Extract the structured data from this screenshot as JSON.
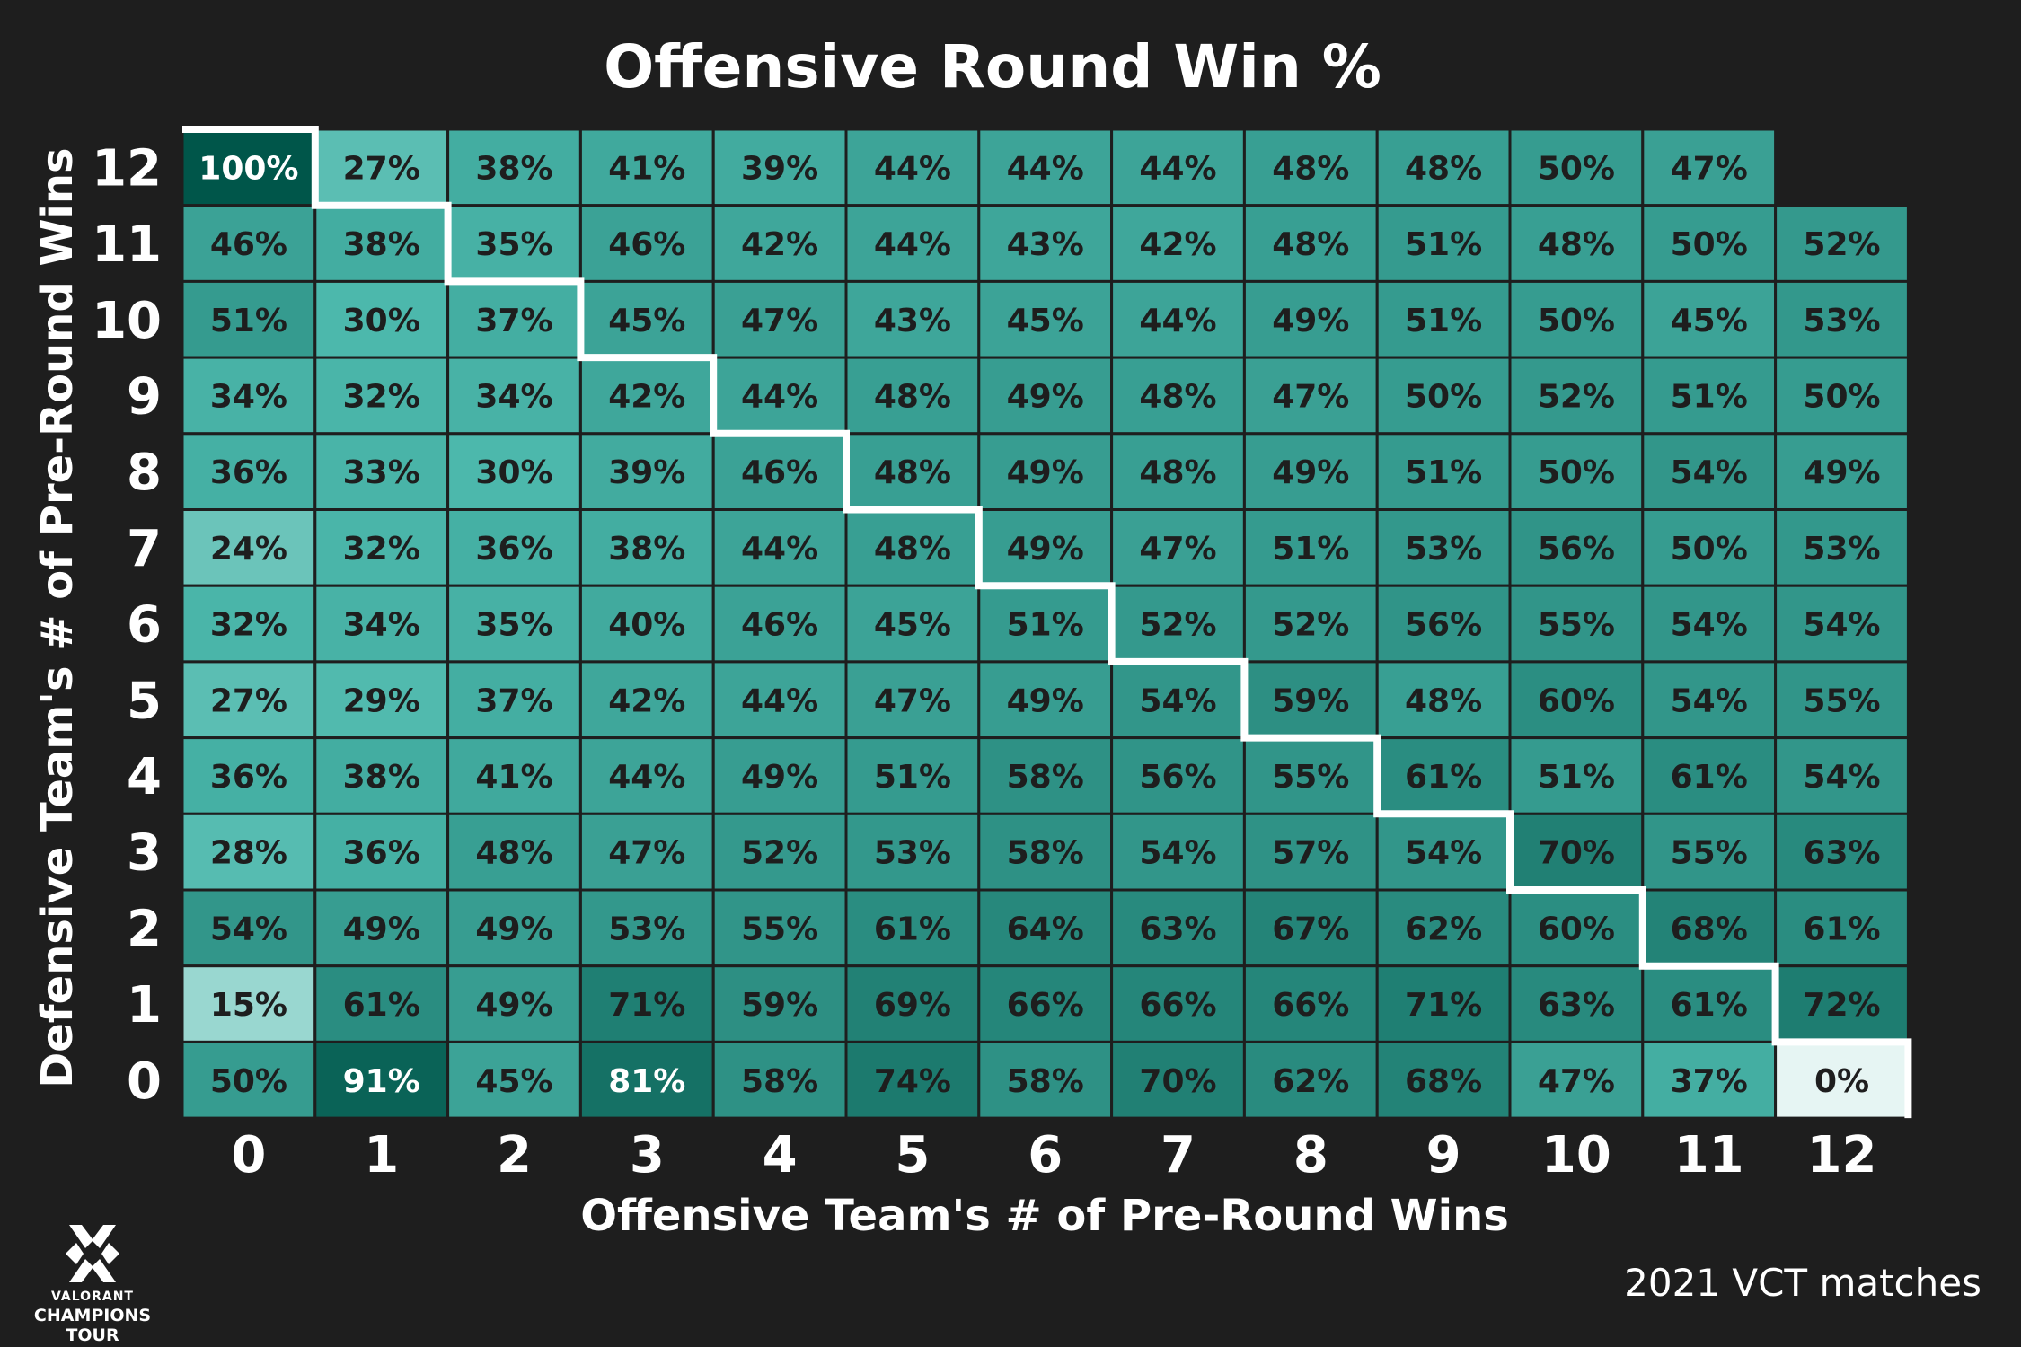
{
  "chart_data": {
    "type": "heatmap",
    "title": "Offensive Round Win %",
    "xlabel": "Offensive Team's # of Pre-Round Wins",
    "ylabel": "Defensive Team's # of Pre-Round Wins",
    "x_categories": [
      "0",
      "1",
      "2",
      "3",
      "4",
      "5",
      "6",
      "7",
      "8",
      "9",
      "10",
      "11",
      "12"
    ],
    "y_categories": [
      "0",
      "1",
      "2",
      "3",
      "4",
      "5",
      "6",
      "7",
      "8",
      "9",
      "10",
      "11",
      "12"
    ],
    "value_unit": "%",
    "rows": [
      {
        "y": "12",
        "values": [
          100,
          27,
          38,
          41,
          39,
          44,
          44,
          44,
          48,
          48,
          50,
          47,
          null
        ]
      },
      {
        "y": "11",
        "values": [
          46,
          38,
          35,
          46,
          42,
          44,
          43,
          42,
          48,
          51,
          48,
          50,
          52
        ]
      },
      {
        "y": "10",
        "values": [
          51,
          30,
          37,
          45,
          47,
          43,
          45,
          44,
          49,
          51,
          50,
          45,
          53
        ]
      },
      {
        "y": "9",
        "values": [
          34,
          32,
          34,
          42,
          44,
          48,
          49,
          48,
          47,
          50,
          52,
          51,
          50
        ]
      },
      {
        "y": "8",
        "values": [
          36,
          33,
          30,
          39,
          46,
          48,
          49,
          48,
          49,
          51,
          50,
          54,
          49
        ]
      },
      {
        "y": "7",
        "values": [
          24,
          32,
          36,
          38,
          44,
          48,
          49,
          47,
          51,
          53,
          56,
          50,
          53
        ]
      },
      {
        "y": "6",
        "values": [
          32,
          34,
          35,
          40,
          46,
          45,
          51,
          52,
          52,
          56,
          55,
          54,
          54
        ]
      },
      {
        "y": "5",
        "values": [
          27,
          29,
          37,
          42,
          44,
          47,
          49,
          54,
          59,
          48,
          60,
          54,
          55
        ]
      },
      {
        "y": "4",
        "values": [
          36,
          38,
          41,
          44,
          49,
          51,
          58,
          56,
          55,
          61,
          51,
          61,
          54
        ]
      },
      {
        "y": "3",
        "values": [
          28,
          36,
          48,
          47,
          52,
          53,
          58,
          54,
          57,
          54,
          70,
          55,
          63
        ]
      },
      {
        "y": "2",
        "values": [
          54,
          49,
          49,
          53,
          55,
          61,
          64,
          63,
          67,
          62,
          60,
          68,
          61
        ]
      },
      {
        "y": "1",
        "values": [
          15,
          61,
          49,
          71,
          59,
          69,
          66,
          66,
          66,
          71,
          63,
          61,
          72
        ]
      },
      {
        "y": "0",
        "values": [
          50,
          91,
          45,
          81,
          58,
          74,
          58,
          70,
          62,
          68,
          47,
          37,
          0
        ]
      }
    ],
    "diagonal_staircase": true,
    "grid": true,
    "legend": "none"
  },
  "source_note": "2021 VCT matches",
  "logo": {
    "line1": "VALORANT",
    "line2": "CHAMPIONS TOUR"
  },
  "colors": {
    "background": "#1e1e1e",
    "grid_lines": "#1e1e1e",
    "staircase": "#ffffff",
    "scale_low": "#e6f5f3",
    "scale_mid": "#4cb8ac",
    "scale_high": "#00564a"
  }
}
